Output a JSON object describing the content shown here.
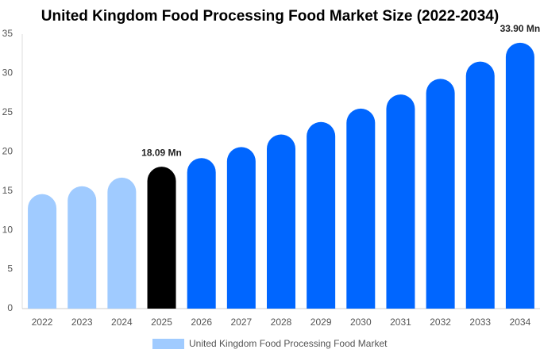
{
  "chart_data": {
    "type": "bar",
    "title": "United Kingdom Food Processing Food Market Size (2022-2034)",
    "categories": [
      "2022",
      "2023",
      "2024",
      "2025",
      "2026",
      "2027",
      "2028",
      "2029",
      "2030",
      "2031",
      "2032",
      "2033",
      "2034"
    ],
    "series": [
      {
        "name": "United Kingdom Food Processing Food Market",
        "color": "#a0cbff",
        "colors": [
          "#a0cbff",
          "#a0cbff",
          "#a0cbff",
          "#000000",
          "#0066ff",
          "#0066ff",
          "#0066ff",
          "#0066ff",
          "#0066ff",
          "#0066ff",
          "#0066ff",
          "#0066ff",
          "#0066ff"
        ],
        "values": [
          14.6,
          15.6,
          16.7,
          18.09,
          19.2,
          20.6,
          22.2,
          23.8,
          25.5,
          27.3,
          29.3,
          31.5,
          33.9
        ],
        "value_labels": [
          null,
          null,
          null,
          "18.09 Mn",
          null,
          null,
          null,
          null,
          null,
          null,
          null,
          null,
          "33.90 Mn"
        ]
      }
    ],
    "ylim": [
      0,
      35
    ],
    "yticks": [
      0,
      5,
      10,
      15,
      20,
      25,
      30,
      35
    ],
    "grid": false,
    "legend": "bottom"
  }
}
